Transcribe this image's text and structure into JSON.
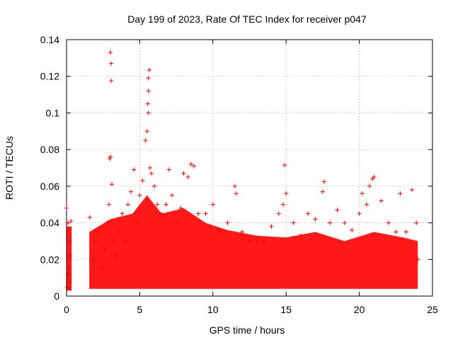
{
  "chart_data": {
    "type": "scatter",
    "title": "Day 199 of 2023, Rate Of TEC Index for receiver p047",
    "xlabel": "GPS time / hours",
    "ylabel": "ROTI / TECUs",
    "xlim": [
      0,
      25
    ],
    "ylim": [
      0,
      0.14
    ],
    "xticks": [
      0,
      5,
      10,
      15,
      20,
      25
    ],
    "xtick_labels": [
      "0",
      "5",
      "10",
      "15",
      "20",
      "25"
    ],
    "yticks": [
      0,
      0.02,
      0.04,
      0.06,
      0.08,
      0.1,
      0.12,
      0.14
    ],
    "ytick_labels": [
      "0",
      "0.02",
      "0.04",
      "0.06",
      "0.08",
      "0.1",
      "0.12",
      "0.14"
    ],
    "grid": true,
    "marker": "+",
    "series": [
      {
        "name": "ROTI",
        "color": "#ff0000",
        "points": [
          [
            0.0,
            0.048
          ],
          [
            0.05,
            0.005
          ],
          [
            0.1,
            0.04
          ],
          [
            0.15,
            0.015
          ],
          [
            0.2,
            0.03
          ],
          [
            0.25,
            0.022
          ],
          [
            0.3,
            0.041
          ],
          [
            0.1,
            0.012
          ],
          [
            0.2,
            0.008
          ],
          [
            1.6,
            0.043
          ],
          [
            1.8,
            0.02
          ],
          [
            2.0,
            0.03
          ],
          [
            2.2,
            0.035
          ],
          [
            2.4,
            0.015
          ],
          [
            2.6,
            0.025
          ],
          [
            2.8,
            0.04
          ],
          [
            2.9,
            0.05
          ],
          [
            3.0,
            0.133
          ],
          [
            3.05,
            0.127
          ],
          [
            3.05,
            0.1175
          ],
          [
            2.95,
            0.075
          ],
          [
            3.0,
            0.076
          ],
          [
            3.1,
            0.061
          ],
          [
            3.2,
            0.03
          ],
          [
            3.4,
            0.022
          ],
          [
            3.6,
            0.035
          ],
          [
            3.8,
            0.045
          ],
          [
            4.0,
            0.03
          ],
          [
            4.2,
            0.05
          ],
          [
            4.4,
            0.057
          ],
          [
            4.6,
            0.069
          ],
          [
            4.8,
            0.04
          ],
          [
            5.0,
            0.055
          ],
          [
            5.2,
            0.063
          ],
          [
            5.4,
            0.085
          ],
          [
            5.5,
            0.09
          ],
          [
            5.55,
            0.105
          ],
          [
            5.6,
            0.112
          ],
          [
            5.6,
            0.119
          ],
          [
            5.65,
            0.1235
          ],
          [
            5.6,
            0.1
          ],
          [
            5.7,
            0.07
          ],
          [
            5.8,
            0.067
          ],
          [
            6.0,
            0.06
          ],
          [
            6.2,
            0.05
          ],
          [
            6.5,
            0.045
          ],
          [
            6.8,
            0.05
          ],
          [
            7.0,
            0.069
          ],
          [
            7.2,
            0.055
          ],
          [
            7.5,
            0.04
          ],
          [
            7.8,
            0.048
          ],
          [
            8.0,
            0.067
          ],
          [
            8.3,
            0.065
          ],
          [
            8.5,
            0.072
          ],
          [
            8.7,
            0.071
          ],
          [
            9.0,
            0.045
          ],
          [
            9.5,
            0.045
          ],
          [
            10.0,
            0.05
          ],
          [
            10.5,
            0.035
          ],
          [
            11.0,
            0.04
          ],
          [
            11.5,
            0.06
          ],
          [
            11.6,
            0.056
          ],
          [
            12.0,
            0.035
          ],
          [
            12.5,
            0.03
          ],
          [
            13.0,
            0.03
          ],
          [
            13.5,
            0.03
          ],
          [
            14.0,
            0.038
          ],
          [
            14.5,
            0.045
          ],
          [
            14.8,
            0.05
          ],
          [
            14.9,
            0.0715
          ],
          [
            15.0,
            0.056
          ],
          [
            15.5,
            0.04
          ],
          [
            16.0,
            0.033
          ],
          [
            16.5,
            0.045
          ],
          [
            17.0,
            0.042
          ],
          [
            17.5,
            0.057
          ],
          [
            17.6,
            0.0625
          ],
          [
            18.0,
            0.04
          ],
          [
            18.5,
            0.047
          ],
          [
            19.0,
            0.04
          ],
          [
            19.5,
            0.036
          ],
          [
            20.0,
            0.045
          ],
          [
            20.2,
            0.056
          ],
          [
            20.5,
            0.05
          ],
          [
            20.7,
            0.06
          ],
          [
            20.9,
            0.064
          ],
          [
            21.0,
            0.065
          ],
          [
            21.5,
            0.052
          ],
          [
            22.0,
            0.04
          ],
          [
            22.5,
            0.035
          ],
          [
            22.8,
            0.056
          ],
          [
            23.2,
            0.035
          ],
          [
            23.6,
            0.058
          ],
          [
            23.9,
            0.04
          ],
          [
            24.0,
            0.02
          ]
        ]
      }
    ]
  }
}
